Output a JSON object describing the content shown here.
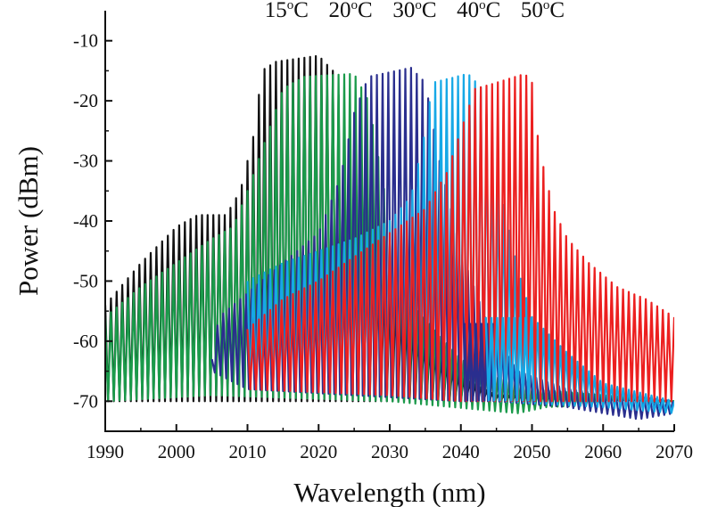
{
  "chart_data": {
    "type": "line",
    "title": "",
    "xlabel": "Wavelength (nm)",
    "ylabel": "Power (dBm)",
    "xlim": [
      1990,
      2070
    ],
    "ylim": [
      -75,
      -5
    ],
    "xticks": [
      1990,
      2000,
      2010,
      2020,
      2030,
      2040,
      2050,
      2060,
      2070
    ],
    "yticks": [
      -10,
      -20,
      -30,
      -40,
      -50,
      -60,
      -70
    ],
    "xtick_labels": [
      "1990",
      "2000",
      "2010",
      "2020",
      "2030",
      "2040",
      "2050",
      "2060",
      "2070"
    ],
    "ytick_labels": [
      "-10",
      "-20",
      "-30",
      "-40",
      "-50",
      "-60",
      "-70"
    ],
    "grid": false,
    "annotations": [
      {
        "num": "15",
        "sup": "o",
        "unit": "C",
        "x": 2015.5
      },
      {
        "num": "20",
        "sup": "o",
        "unit": "C",
        "x": 2024.5
      },
      {
        "num": "30",
        "sup": "o",
        "unit": "C",
        "x": 2033.5
      },
      {
        "num": "40",
        "sup": "o",
        "unit": "C",
        "x": 2042.5
      },
      {
        "num": "50",
        "sup": "o",
        "unit": "C",
        "x": 2051.5
      }
    ],
    "annotation_y": -6,
    "mode_spacing_nm": 0.8,
    "series": [
      {
        "color": "#111111",
        "top": [
          [
            1990,
            -54
          ],
          [
            1995,
            -47
          ],
          [
            2000,
            -41
          ],
          [
            2003,
            -39
          ],
          [
            2007,
            -39
          ],
          [
            2009,
            -35
          ],
          [
            2011,
            -25
          ],
          [
            2012,
            -15
          ],
          [
            2014,
            -13.5
          ],
          [
            2020,
            -12.5
          ],
          [
            2022,
            -15
          ],
          [
            2024,
            -25
          ],
          [
            2026,
            -40
          ],
          [
            2030,
            -52
          ],
          [
            2035,
            -60
          ],
          [
            2040,
            -66
          ],
          [
            2045,
            -69
          ],
          [
            2070,
            -70
          ]
        ],
        "bottom": [
          [
            1990,
            -70
          ],
          [
            2070,
            -70
          ]
        ]
      },
      {
        "color": "#1a9a4a",
        "top": [
          [
            1990,
            -56
          ],
          [
            1995,
            -51
          ],
          [
            2000,
            -47
          ],
          [
            2005,
            -43
          ],
          [
            2008,
            -41
          ],
          [
            2010,
            -35
          ],
          [
            2013,
            -25
          ],
          [
            2015,
            -18
          ],
          [
            2018,
            -16
          ],
          [
            2025,
            -15.5
          ],
          [
            2027,
            -20
          ],
          [
            2030,
            -40
          ],
          [
            2034,
            -55
          ],
          [
            2040,
            -63
          ],
          [
            2045,
            -66
          ],
          [
            2050,
            -68
          ],
          [
            2070,
            -70
          ]
        ],
        "bottom": [
          [
            1990,
            -70
          ],
          [
            2005,
            -69
          ],
          [
            2030,
            -70
          ],
          [
            2048,
            -72
          ],
          [
            2052,
            -71
          ],
          [
            2070,
            -70
          ]
        ]
      },
      {
        "color": "#2a2e8e",
        "top": [
          [
            2005,
            -63
          ],
          [
            2006,
            -56
          ],
          [
            2010,
            -52
          ],
          [
            2015,
            -47
          ],
          [
            2020,
            -42
          ],
          [
            2023,
            -33
          ],
          [
            2025,
            -22
          ],
          [
            2027,
            -16
          ],
          [
            2033,
            -14.5
          ],
          [
            2035,
            -17
          ],
          [
            2037,
            -30
          ],
          [
            2040,
            -45
          ],
          [
            2044,
            -58
          ],
          [
            2048,
            -65
          ],
          [
            2055,
            -68
          ],
          [
            2070,
            -70
          ]
        ],
        "bottom": [
          [
            2005,
            -65
          ],
          [
            2010,
            -68
          ],
          [
            2040,
            -70
          ],
          [
            2045,
            -70
          ],
          [
            2055,
            -71
          ],
          [
            2065,
            -73
          ],
          [
            2070,
            -72
          ]
        ]
      },
      {
        "color": "#16a8e6",
        "top": [
          [
            2010,
            -50
          ],
          [
            2015,
            -47
          ],
          [
            2020,
            -45
          ],
          [
            2025,
            -43
          ],
          [
            2030,
            -40
          ],
          [
            2033,
            -36
          ],
          [
            2035,
            -25
          ],
          [
            2036,
            -17
          ],
          [
            2041,
            -15.5
          ],
          [
            2043,
            -18
          ],
          [
            2045,
            -32
          ],
          [
            2048,
            -48
          ],
          [
            2050,
            -56
          ],
          [
            2055,
            -62
          ],
          [
            2060,
            -67
          ],
          [
            2070,
            -70
          ]
        ],
        "bottom": [
          [
            2010,
            -68
          ],
          [
            2030,
            -69
          ],
          [
            2045,
            -70
          ],
          [
            2060,
            -71
          ],
          [
            2070,
            -72
          ]
        ]
      },
      {
        "color": "#ec2020",
        "top": [
          [
            2010,
            -58
          ],
          [
            2015,
            -53
          ],
          [
            2020,
            -50
          ],
          [
            2025,
            -46
          ],
          [
            2030,
            -42
          ],
          [
            2035,
            -38
          ],
          [
            2038,
            -32
          ],
          [
            2040,
            -25
          ],
          [
            2042,
            -18
          ],
          [
            2045,
            -17
          ],
          [
            2049,
            -15.5
          ],
          [
            2050,
            -17
          ],
          [
            2051,
            -28
          ],
          [
            2053,
            -38
          ],
          [
            2055,
            -43
          ],
          [
            2058,
            -47
          ],
          [
            2062,
            -51
          ],
          [
            2066,
            -53
          ],
          [
            2070,
            -56
          ]
        ],
        "bottom": [
          [
            2010,
            -68
          ],
          [
            2030,
            -69
          ],
          [
            2040,
            -70
          ],
          [
            2050,
            -70
          ],
          [
            2060,
            -70
          ],
          [
            2070,
            -70
          ]
        ]
      }
    ],
    "bumps": [
      {
        "color": "#2a2e8e",
        "x0": 2040.5,
        "x1": 2044.5,
        "top": -57,
        "bottom": -70
      },
      {
        "color": "#16a8e6",
        "x0": 2043.5,
        "x1": 2050.5,
        "top": -56,
        "bottom": -70
      }
    ]
  }
}
